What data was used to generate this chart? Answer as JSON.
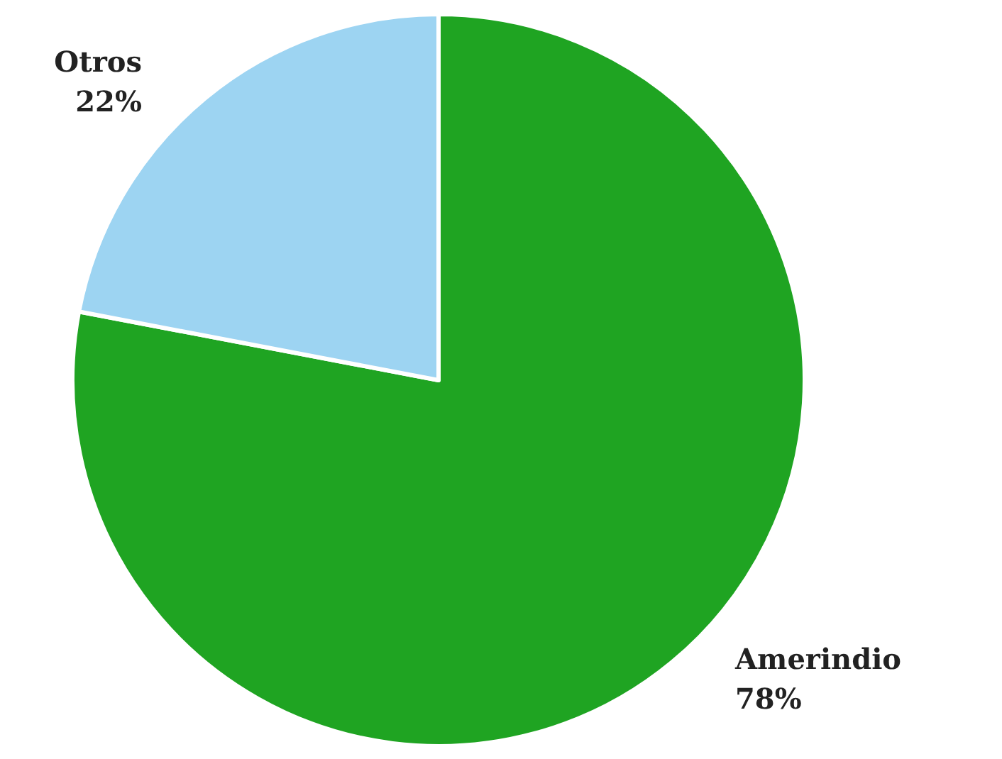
{
  "chart_data": {
    "type": "pie",
    "categories": [
      "Amerindio",
      "Otros"
    ],
    "values": [
      78,
      22
    ],
    "colors": [
      "#1fa422",
      "#9dd4f2"
    ],
    "value_labels": [
      "78%",
      "22%"
    ]
  }
}
